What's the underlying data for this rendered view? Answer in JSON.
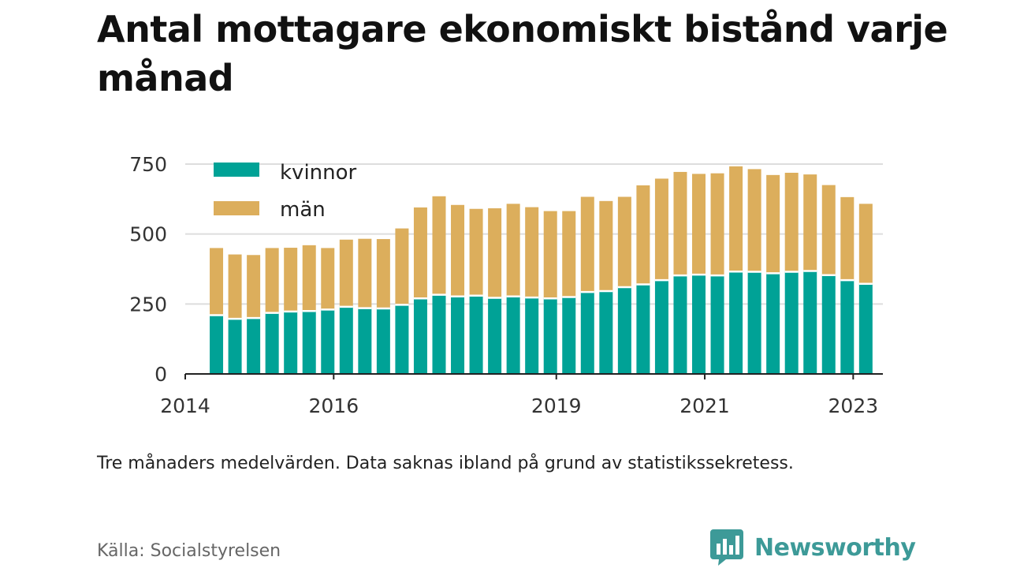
{
  "title": "Antal mottagare ekonomiskt bistånd varje månad",
  "note": "Tre månaders medelvärden. Data saknas ibland på grund av statistikssekretess.",
  "source": "Källa: Socialstyrelsen",
  "brand": {
    "name": "Newsworthy",
    "icon": "bar-chart-speech-bubble-icon"
  },
  "colors": {
    "kvinnor": "#00a296",
    "man": "#dcae5c",
    "grid": "#dddddd",
    "axis": "#222222",
    "brand": "#3d9a98"
  },
  "chart_data": {
    "type": "bar",
    "stacked": true,
    "title": "Antal mottagare ekonomiskt bistånd varje månad",
    "xlabel": "",
    "ylabel": "",
    "ylim": [
      0,
      750
    ],
    "yticks": [
      0,
      250,
      500,
      750
    ],
    "xticks": [
      "2014",
      "2016",
      "2019",
      "2021",
      "2023"
    ],
    "xlim": [
      2014,
      2023.4
    ],
    "grid": true,
    "legend": "top-left",
    "x": [
      2014.42,
      2014.67,
      2014.92,
      2015.17,
      2015.42,
      2015.67,
      2015.92,
      2016.17,
      2016.42,
      2016.67,
      2016.92,
      2017.17,
      2017.42,
      2017.67,
      2017.92,
      2018.17,
      2018.42,
      2018.67,
      2018.92,
      2019.17,
      2019.42,
      2019.67,
      2019.92,
      2020.17,
      2020.42,
      2020.67,
      2020.92,
      2021.17,
      2021.42,
      2021.67,
      2021.92,
      2022.17,
      2022.42,
      2022.67,
      2022.92,
      2023.17
    ],
    "series": [
      {
        "name": "kvinnor",
        "values": [
          210,
          197,
          200,
          218,
          223,
          225,
          230,
          240,
          235,
          234,
          247,
          270,
          283,
          277,
          280,
          272,
          277,
          273,
          270,
          275,
          293,
          296,
          310,
          320,
          335,
          352,
          355,
          352,
          366,
          365,
          360,
          365,
          368,
          353,
          335,
          322
        ]
      },
      {
        "name": "män",
        "values": [
          240,
          230,
          225,
          232,
          228,
          235,
          220,
          240,
          248,
          248,
          273,
          325,
          352,
          327,
          310,
          320,
          331,
          323,
          312,
          307,
          340,
          322,
          323,
          354,
          363,
          370,
          360,
          365,
          376,
          367,
          351,
          354,
          345,
          322,
          297,
          286
        ]
      }
    ]
  }
}
